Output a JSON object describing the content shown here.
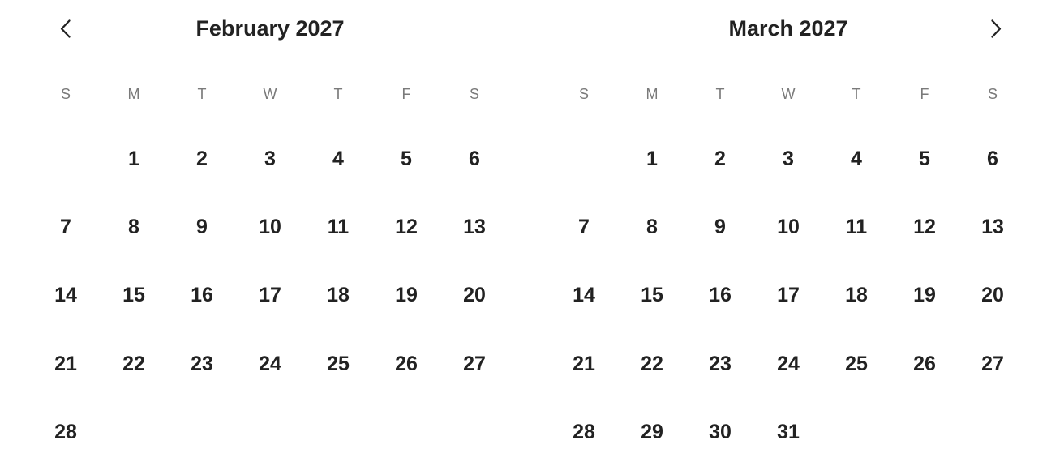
{
  "page": {
    "background": "#ffffff"
  },
  "colors": {
    "text_primary": "#222222",
    "text_muted": "#7a7a7a"
  },
  "nav": {
    "prev_icon": "chevron-left-icon",
    "next_icon": "chevron-right-icon"
  },
  "calendars": [
    {
      "title": "February 2027",
      "weekdays": [
        "S",
        "M",
        "T",
        "W",
        "T",
        "F",
        "S"
      ],
      "weeks": [
        [
          "",
          "1",
          "2",
          "3",
          "4",
          "5",
          "6"
        ],
        [
          "7",
          "8",
          "9",
          "10",
          "11",
          "12",
          "13"
        ],
        [
          "14",
          "15",
          "16",
          "17",
          "18",
          "19",
          "20"
        ],
        [
          "21",
          "22",
          "23",
          "24",
          "25",
          "26",
          "27"
        ],
        [
          "28",
          "",
          "",
          "",
          "",
          "",
          ""
        ]
      ]
    },
    {
      "title": "March 2027",
      "weekdays": [
        "S",
        "M",
        "T",
        "W",
        "T",
        "F",
        "S"
      ],
      "weeks": [
        [
          "",
          "1",
          "2",
          "3",
          "4",
          "5",
          "6"
        ],
        [
          "7",
          "8",
          "9",
          "10",
          "11",
          "12",
          "13"
        ],
        [
          "14",
          "15",
          "16",
          "17",
          "18",
          "19",
          "20"
        ],
        [
          "21",
          "22",
          "23",
          "24",
          "25",
          "26",
          "27"
        ],
        [
          "28",
          "29",
          "30",
          "31",
          "",
          "",
          ""
        ]
      ]
    }
  ]
}
